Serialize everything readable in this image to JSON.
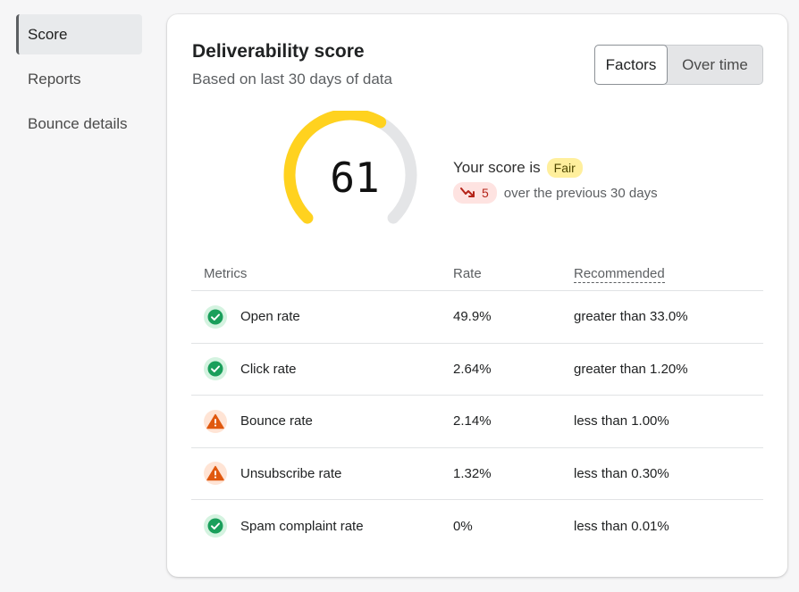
{
  "sidebar": {
    "items": [
      {
        "label": "Score",
        "active": true
      },
      {
        "label": "Reports",
        "active": false
      },
      {
        "label": "Bounce details",
        "active": false
      }
    ]
  },
  "card": {
    "title": "Deliverability score",
    "subtitle": "Based on last 30 days of data",
    "toggle": {
      "options": [
        "Factors",
        "Over time"
      ],
      "selected": "Factors"
    }
  },
  "gauge": {
    "value": "61",
    "max": 100,
    "fill_color": "#ffd21f",
    "track_color": "#e4e5e7"
  },
  "score": {
    "label": "Your score is",
    "rating": "Fair",
    "change_value": "5",
    "change_direction": "down",
    "change_text": "over the previous 30 days"
  },
  "metrics_table": {
    "headers": {
      "metric": "Metrics",
      "rate": "Rate",
      "recommended": "Recommended"
    },
    "rows": [
      {
        "status": "ok",
        "metric": "Open rate",
        "rate": "49.9%",
        "recommended": "greater than 33.0%"
      },
      {
        "status": "ok",
        "metric": "Click rate",
        "rate": "2.64%",
        "recommended": "greater than 1.20%"
      },
      {
        "status": "warn",
        "metric": "Bounce rate",
        "rate": "2.14%",
        "recommended": "less than 1.00%"
      },
      {
        "status": "warn",
        "metric": "Unsubscribe rate",
        "rate": "1.32%",
        "recommended": "less than 0.30%"
      },
      {
        "status": "ok",
        "metric": "Spam complaint rate",
        "rate": "0%",
        "recommended": "less than 0.01%"
      }
    ]
  },
  "colors": {
    "ok_icon": "#1a9f5b",
    "warn_icon": "#e0590f",
    "down_trend": "#b42318"
  },
  "icons": {
    "ok": "check-circle-icon",
    "warn": "warning-triangle-icon",
    "trend": "trend-down-icon"
  }
}
